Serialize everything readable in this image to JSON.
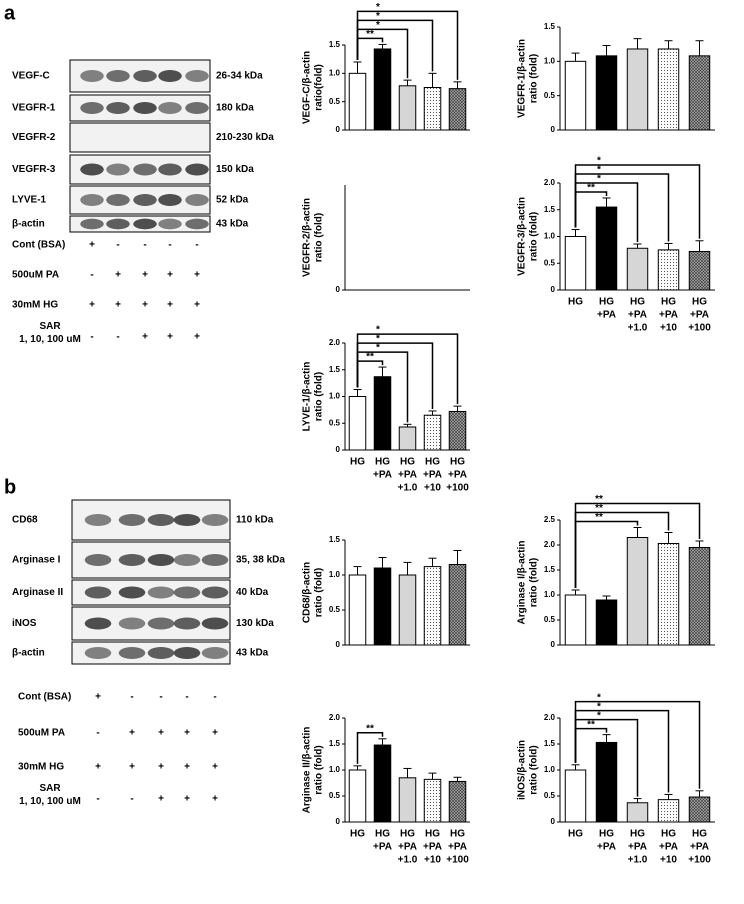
{
  "figure": {
    "panel_labels": [
      "a",
      "b"
    ],
    "blots": [
      {
        "rows": [
          {
            "name": "VEGF-C",
            "kda": "26-34 kDa"
          },
          {
            "name": "VEGFR-1",
            "kda": "180 kDa"
          },
          {
            "name": "VEGFR-2",
            "kda": "210-230 kDa"
          },
          {
            "name": "VEGFR-3",
            "kda": "150 kDa"
          },
          {
            "name": "LYVE-1",
            "kda": "52 kDa"
          },
          {
            "name": "β-actin",
            "kda": "43 kDa"
          }
        ],
        "treatments": [
          {
            "label": [
              "Cont (BSA)"
            ],
            "signs": [
              "+",
              "-",
              "-",
              "-",
              "-"
            ]
          },
          {
            "label": [
              "500uM PA"
            ],
            "signs": [
              "-",
              "+",
              "+",
              "+",
              "+"
            ]
          },
          {
            "label": [
              "30mM HG"
            ],
            "signs": [
              "+",
              "+",
              "+",
              "+",
              "+"
            ]
          },
          {
            "label": [
              "SAR",
              "1, 10, 100 uM"
            ],
            "signs": [
              "-",
              "-",
              "+",
              "+",
              "+"
            ]
          }
        ]
      },
      {
        "rows": [
          {
            "name": "CD68",
            "kda": "110 kDa"
          },
          {
            "name": "Arginase I",
            "kda": "35, 38 kDa"
          },
          {
            "name": "Arginase II",
            "kda": "40 kDa"
          },
          {
            "name": "iNOS",
            "kda": "130 kDa"
          },
          {
            "name": "β-actin",
            "kda": "43 kDa"
          }
        ],
        "treatments": [
          {
            "label": [
              "Cont (BSA)"
            ],
            "signs": [
              "+",
              "-",
              "-",
              "-",
              "-"
            ]
          },
          {
            "label": [
              "500uM PA"
            ],
            "signs": [
              "-",
              "+",
              "+",
              "+",
              "+"
            ]
          },
          {
            "label": [
              "30mM HG"
            ],
            "signs": [
              "+",
              "+",
              "+",
              "+",
              "+"
            ]
          },
          {
            "label": [
              "SAR",
              "1, 10, 100 uM"
            ],
            "signs": [
              "-",
              "-",
              "+",
              "+",
              "+"
            ]
          }
        ]
      }
    ]
  },
  "chart_data": [
    {
      "type": "bar",
      "ylabel": [
        "VEGF-C/β-actin",
        "ratio(fold)"
      ],
      "ylim": [
        0,
        1.5
      ],
      "yticks": [
        0,
        0.5,
        {
          "value": 1,
          "label": "1.0"
        },
        1.5
      ],
      "values": [
        1.0,
        1.43,
        0.78,
        0.75,
        0.73
      ],
      "errors": [
        0.2,
        0.08,
        0.1,
        0.25,
        0.12
      ],
      "significance": [
        {
          "from": 0,
          "to": 1,
          "label": "**"
        },
        {
          "from": 0,
          "to": 2,
          "label": "*"
        },
        {
          "from": 0,
          "to": 3,
          "label": "*"
        },
        {
          "from": 0,
          "to": 4,
          "label": "*"
        }
      ]
    },
    {
      "type": "bar",
      "ylabel": [
        "VEGFR-1/β-actin",
        "ratio (fold)"
      ],
      "ylim": [
        0,
        1.5
      ],
      "yticks": [
        0,
        0.5,
        {
          "value": 1,
          "label": "1.0"
        },
        1.5
      ],
      "values": [
        1.0,
        1.08,
        1.18,
        1.18,
        1.08
      ],
      "errors": [
        0.12,
        0.15,
        0.15,
        0.12,
        0.22
      ]
    },
    {
      "type": "bar",
      "ylabel": [
        "VEGFR-2/β-actin",
        "ratio (fold)"
      ],
      "ylim": [
        0,
        1.5
      ],
      "yticks": [
        0
      ],
      "values": []
    },
    {
      "type": "bar",
      "ylabel": [
        "VEGFR-3/β-actin",
        "ratio (fold)"
      ],
      "ylim": [
        0,
        2
      ],
      "yticks": [
        0,
        0.5,
        {
          "value": 1,
          "label": "1.0"
        },
        1.5,
        {
          "value": 2,
          "label": "2.0"
        }
      ],
      "values": [
        1.0,
        1.55,
        0.78,
        0.75,
        0.72
      ],
      "errors": [
        0.13,
        0.17,
        0.08,
        0.12,
        0.2
      ],
      "categories": [
        [
          "HG"
        ],
        [
          "HG",
          "+PA"
        ],
        [
          "HG",
          "+PA",
          "+1.0"
        ],
        [
          "HG",
          "+PA",
          "+10"
        ],
        [
          "HG",
          "+PA",
          "+100"
        ]
      ],
      "significance": [
        {
          "from": 0,
          "to": 1,
          "label": "**"
        },
        {
          "from": 0,
          "to": 2,
          "label": "*"
        },
        {
          "from": 0,
          "to": 3,
          "label": "*"
        },
        {
          "from": 0,
          "to": 4,
          "label": "*"
        }
      ]
    },
    {
      "type": "bar",
      "ylabel": [
        "LYVE-1/β-actin",
        "ratio (fold)"
      ],
      "ylim": [
        0,
        2
      ],
      "yticks": [
        0,
        0.5,
        {
          "value": 1,
          "label": "1.0"
        },
        1.5,
        {
          "value": 2,
          "label": "2.0"
        }
      ],
      "values": [
        1.0,
        1.37,
        0.43,
        0.65,
        0.72
      ],
      "errors": [
        0.13,
        0.18,
        0.05,
        0.08,
        0.1
      ],
      "categories": [
        [
          "HG"
        ],
        [
          "HG",
          "+PA"
        ],
        [
          "HG",
          "+PA",
          "+1.0"
        ],
        [
          "HG",
          "+PA",
          "+10"
        ],
        [
          "HG",
          "+PA",
          "+100"
        ]
      ],
      "significance": [
        {
          "from": 0,
          "to": 1,
          "label": "**"
        },
        {
          "from": 0,
          "to": 2,
          "label": "*"
        },
        {
          "from": 0,
          "to": 3,
          "label": "*"
        },
        {
          "from": 0,
          "to": 4,
          "label": "*"
        }
      ]
    },
    {
      "type": "bar",
      "ylabel": [
        "CD68/β-actin",
        "ratio (fold)"
      ],
      "ylim": [
        0,
        1.5
      ],
      "yticks": [
        0,
        0.5,
        {
          "value": 1,
          "label": "1.0"
        },
        1.5
      ],
      "values": [
        1.0,
        1.1,
        1.0,
        1.12,
        1.15
      ],
      "errors": [
        0.12,
        0.15,
        0.18,
        0.12,
        0.2
      ]
    },
    {
      "type": "bar",
      "ylabel": [
        "Arginase I/β-actin",
        "ratio (fold)"
      ],
      "ylim": [
        0,
        2.5
      ],
      "yticks": [
        0,
        0.5,
        {
          "value": 1,
          "label": "1.0"
        },
        1.5,
        {
          "value": 2,
          "label": "2.0"
        },
        2.5
      ],
      "values": [
        1.0,
        0.9,
        2.15,
        2.03,
        1.95
      ],
      "errors": [
        0.1,
        0.08,
        0.2,
        0.22,
        0.13
      ],
      "significance": [
        {
          "from": 0,
          "to": 2,
          "label": "**"
        },
        {
          "from": 0,
          "to": 3,
          "label": "**"
        },
        {
          "from": 0,
          "to": 4,
          "label": "**"
        }
      ]
    },
    {
      "type": "bar",
      "ylabel": [
        "Arginase II/β-actin",
        "ratio (fold)"
      ],
      "ylim": [
        0,
        2
      ],
      "yticks": [
        0,
        0.5,
        {
          "value": 1,
          "label": "1.0"
        },
        1.5,
        {
          "value": 2,
          "label": "2.0"
        }
      ],
      "values": [
        1.0,
        1.48,
        0.85,
        0.82,
        0.78
      ],
      "errors": [
        0.08,
        0.12,
        0.18,
        0.12,
        0.08
      ],
      "categories": [
        [
          "HG"
        ],
        [
          "HG",
          "+PA"
        ],
        [
          "HG",
          "+PA",
          "+1.0"
        ],
        [
          "HG",
          "+PA",
          "+10"
        ],
        [
          "HG",
          "+PA",
          "+100"
        ]
      ],
      "significance": [
        {
          "from": 0,
          "to": 1,
          "label": "**"
        }
      ]
    },
    {
      "type": "bar",
      "ylabel": [
        "iNOS/β-actin",
        "ratio (fold)"
      ],
      "ylim": [
        0,
        2
      ],
      "yticks": [
        0,
        0.5,
        {
          "value": 1,
          "label": "1.0"
        },
        1.5,
        {
          "value": 2,
          "label": "2.0"
        }
      ],
      "values": [
        1.0,
        1.53,
        0.37,
        0.43,
        0.48
      ],
      "errors": [
        0.1,
        0.15,
        0.08,
        0.1,
        0.12
      ],
      "categories": [
        [
          "HG"
        ],
        [
          "HG",
          "+PA"
        ],
        [
          "HG",
          "+PA",
          "+1.0"
        ],
        [
          "HG",
          "+PA",
          "+10"
        ],
        [
          "HG",
          "+PA",
          "+100"
        ]
      ],
      "significance": [
        {
          "from": 0,
          "to": 1,
          "label": "**"
        },
        {
          "from": 0,
          "to": 2,
          "label": "*"
        },
        {
          "from": 0,
          "to": 3,
          "label": "*"
        },
        {
          "from": 0,
          "to": 4,
          "label": "*"
        }
      ]
    }
  ]
}
